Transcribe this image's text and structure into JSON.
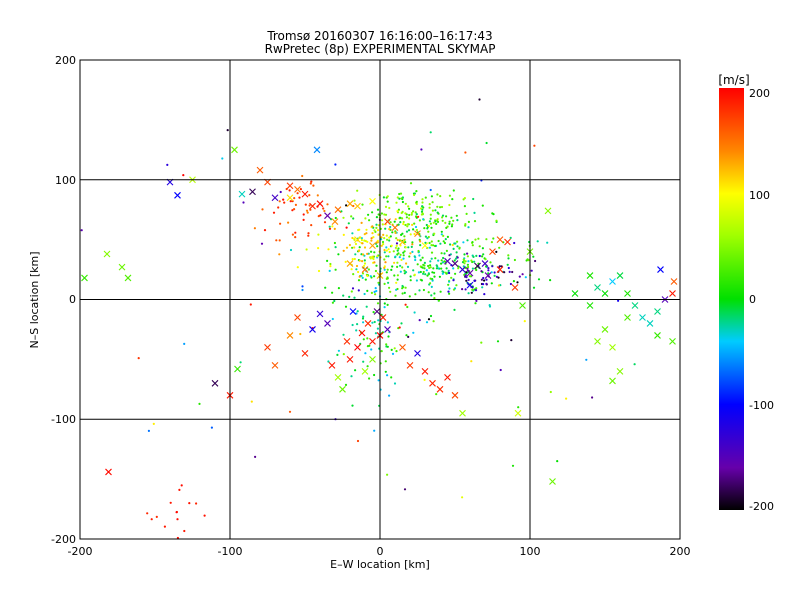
{
  "chart_data": {
    "type": "scatter",
    "title": "Tromsø 20160307 16:16:00–16:17:43",
    "subtitle": "RwPretec (8p) EXPERIMENTAL SKYMAP",
    "xlabel": "E–W location [km]",
    "ylabel": "N–S location [km]",
    "xlim": [
      -200,
      200
    ],
    "ylim": [
      -200,
      200
    ],
    "x_ticks": [
      "-200",
      "-100",
      "0",
      "100",
      "200"
    ],
    "y_ticks": [
      "-200",
      "-100",
      "0",
      "100",
      "200"
    ],
    "grid": true,
    "colorbar": {
      "label": "[m/s]",
      "range": [
        -200,
        200
      ],
      "ticks": [
        "200",
        "100",
        "0",
        "-100",
        "-200"
      ],
      "colormap": "rainbow (black-purple-blue-cyan-green-yellow-orange-red)"
    },
    "marker_types": [
      "x",
      "dot"
    ],
    "points": [
      {
        "x": -80,
        "y": 108,
        "v": 160,
        "m": "x"
      },
      {
        "x": -75,
        "y": 98,
        "v": 170,
        "m": "x"
      },
      {
        "x": -60,
        "y": 95,
        "v": 175,
        "m": "x"
      },
      {
        "x": -55,
        "y": 92,
        "v": 150,
        "m": "x"
      },
      {
        "x": -60,
        "y": 85,
        "v": 110,
        "m": "x"
      },
      {
        "x": -50,
        "y": 88,
        "v": 190,
        "m": "x"
      },
      {
        "x": -45,
        "y": 78,
        "v": 185,
        "m": "x"
      },
      {
        "x": -40,
        "y": 80,
        "v": 195,
        "m": "x"
      },
      {
        "x": -35,
        "y": 70,
        "v": -160,
        "m": "x"
      },
      {
        "x": -30,
        "y": 65,
        "v": 140,
        "m": "x"
      },
      {
        "x": -28,
        "y": 75,
        "v": 150,
        "m": "x"
      },
      {
        "x": -20,
        "y": 80,
        "v": 130,
        "m": "x"
      },
      {
        "x": -15,
        "y": 78,
        "v": 120,
        "m": "x"
      },
      {
        "x": -5,
        "y": 82,
        "v": 100,
        "m": "x"
      },
      {
        "x": -85,
        "y": 90,
        "v": -180,
        "m": "x"
      },
      {
        "x": -92,
        "y": 88,
        "v": -30,
        "m": "x"
      },
      {
        "x": -70,
        "y": 85,
        "v": -140,
        "m": "x"
      },
      {
        "x": -42,
        "y": 125,
        "v": -60,
        "m": "x"
      },
      {
        "x": -97,
        "y": 125,
        "v": 40,
        "m": "x"
      },
      {
        "x": -125,
        "y": 100,
        "v": 70,
        "m": "x"
      },
      {
        "x": -140,
        "y": 98,
        "v": -120,
        "m": "x"
      },
      {
        "x": -135,
        "y": 87,
        "v": -100,
        "m": "x"
      },
      {
        "x": -172,
        "y": 27,
        "v": 40,
        "m": "x"
      },
      {
        "x": -168,
        "y": 18,
        "v": 30,
        "m": "x"
      },
      {
        "x": -182,
        "y": 38,
        "v": 50,
        "m": "x"
      },
      {
        "x": -197,
        "y": 18,
        "v": 20,
        "m": "x"
      },
      {
        "x": -181,
        "y": -144,
        "v": 195,
        "m": "x"
      },
      {
        "x": -100,
        "y": -80,
        "v": 190,
        "m": "x"
      },
      {
        "x": -95,
        "y": -58,
        "v": 20,
        "m": "x"
      },
      {
        "x": -110,
        "y": -70,
        "v": -180,
        "m": "x"
      },
      {
        "x": -75,
        "y": -40,
        "v": 175,
        "m": "x"
      },
      {
        "x": -70,
        "y": -55,
        "v": 160,
        "m": "x"
      },
      {
        "x": -60,
        "y": -30,
        "v": 140,
        "m": "x"
      },
      {
        "x": -55,
        "y": -15,
        "v": 170,
        "m": "x"
      },
      {
        "x": -50,
        "y": -45,
        "v": 185,
        "m": "x"
      },
      {
        "x": -45,
        "y": -25,
        "v": -110,
        "m": "x"
      },
      {
        "x": -40,
        "y": -12,
        "v": -130,
        "m": "x"
      },
      {
        "x": -35,
        "y": -20,
        "v": -150,
        "m": "x"
      },
      {
        "x": -32,
        "y": -55,
        "v": 190,
        "m": "x"
      },
      {
        "x": -28,
        "y": -65,
        "v": 60,
        "m": "x"
      },
      {
        "x": -25,
        "y": -75,
        "v": 40,
        "m": "x"
      },
      {
        "x": -20,
        "y": -50,
        "v": 190,
        "m": "x"
      },
      {
        "x": -15,
        "y": -40,
        "v": 200,
        "m": "x"
      },
      {
        "x": -12,
        "y": -28,
        "v": 195,
        "m": "x"
      },
      {
        "x": -8,
        "y": -20,
        "v": 180,
        "m": "x"
      },
      {
        "x": -5,
        "y": -35,
        "v": 190,
        "m": "x"
      },
      {
        "x": 0,
        "y": -30,
        "v": 200,
        "m": "x"
      },
      {
        "x": 2,
        "y": -15,
        "v": 185,
        "m": "x"
      },
      {
        "x": 5,
        "y": -25,
        "v": -150,
        "m": "x"
      },
      {
        "x": -2,
        "y": -10,
        "v": -170,
        "m": "x"
      },
      {
        "x": -10,
        "y": -60,
        "v": 60,
        "m": "x"
      },
      {
        "x": -5,
        "y": -50,
        "v": 50,
        "m": "x"
      },
      {
        "x": -18,
        "y": -10,
        "v": -100,
        "m": "x"
      },
      {
        "x": -22,
        "y": -35,
        "v": 180,
        "m": "x"
      },
      {
        "x": 15,
        "y": -40,
        "v": 160,
        "m": "x"
      },
      {
        "x": 20,
        "y": -55,
        "v": 175,
        "m": "x"
      },
      {
        "x": 30,
        "y": -60,
        "v": 190,
        "m": "x"
      },
      {
        "x": 35,
        "y": -70,
        "v": 185,
        "m": "x"
      },
      {
        "x": 40,
        "y": -75,
        "v": 180,
        "m": "x"
      },
      {
        "x": 45,
        "y": -65,
        "v": 190,
        "m": "x"
      },
      {
        "x": 50,
        "y": -80,
        "v": 170,
        "m": "x"
      },
      {
        "x": 55,
        "y": -95,
        "v": 60,
        "m": "x"
      },
      {
        "x": 92,
        "y": -95,
        "v": 80,
        "m": "x"
      },
      {
        "x": 115,
        "y": -152,
        "v": 40,
        "m": "x"
      },
      {
        "x": 25,
        "y": -45,
        "v": -120,
        "m": "x"
      },
      {
        "x": 10,
        "y": 60,
        "v": 150,
        "m": "x"
      },
      {
        "x": 5,
        "y": 65,
        "v": 170,
        "m": "x"
      },
      {
        "x": 15,
        "y": 48,
        "v": 120,
        "m": "x"
      },
      {
        "x": 25,
        "y": 55,
        "v": 140,
        "m": "x"
      },
      {
        "x": 30,
        "y": 45,
        "v": 100,
        "m": "x"
      },
      {
        "x": -5,
        "y": 45,
        "v": 130,
        "m": "x"
      },
      {
        "x": -15,
        "y": 50,
        "v": 110,
        "m": "x"
      },
      {
        "x": -20,
        "y": 30,
        "v": 130,
        "m": "x"
      },
      {
        "x": -10,
        "y": 25,
        "v": 150,
        "m": "x"
      },
      {
        "x": 0,
        "y": 20,
        "v": 120,
        "m": "x"
      },
      {
        "x": 45,
        "y": 32,
        "v": -150,
        "m": "x"
      },
      {
        "x": 50,
        "y": 30,
        "v": -170,
        "m": "x"
      },
      {
        "x": 55,
        "y": 25,
        "v": -130,
        "m": "x"
      },
      {
        "x": 60,
        "y": 22,
        "v": -160,
        "m": "x"
      },
      {
        "x": 65,
        "y": 28,
        "v": -180,
        "m": "x"
      },
      {
        "x": 70,
        "y": 30,
        "v": -140,
        "m": "x"
      },
      {
        "x": 72,
        "y": 20,
        "v": -160,
        "m": "x"
      },
      {
        "x": 60,
        "y": 12,
        "v": -110,
        "m": "x"
      },
      {
        "x": 75,
        "y": 40,
        "v": 170,
        "m": "x"
      },
      {
        "x": 80,
        "y": 50,
        "v": 160,
        "m": "x"
      },
      {
        "x": 85,
        "y": 48,
        "v": 180,
        "m": "x"
      },
      {
        "x": 80,
        "y": 25,
        "v": 185,
        "m": "x"
      },
      {
        "x": 90,
        "y": 10,
        "v": 175,
        "m": "x"
      },
      {
        "x": 95,
        "y": -5,
        "v": 30,
        "m": "x"
      },
      {
        "x": 100,
        "y": 40,
        "v": 40,
        "m": "x"
      },
      {
        "x": 112,
        "y": 74,
        "v": 50,
        "m": "x"
      },
      {
        "x": 140,
        "y": 20,
        "v": 10,
        "m": "x"
      },
      {
        "x": 145,
        "y": 10,
        "v": -20,
        "m": "x"
      },
      {
        "x": 150,
        "y": 5,
        "v": 0,
        "m": "x"
      },
      {
        "x": 155,
        "y": 15,
        "v": -40,
        "m": "x"
      },
      {
        "x": 160,
        "y": 20,
        "v": -10,
        "m": "x"
      },
      {
        "x": 165,
        "y": 5,
        "v": 10,
        "m": "x"
      },
      {
        "x": 170,
        "y": -5,
        "v": -20,
        "m": "x"
      },
      {
        "x": 175,
        "y": -15,
        "v": -30,
        "m": "x"
      },
      {
        "x": 165,
        "y": -15,
        "v": 30,
        "m": "x"
      },
      {
        "x": 150,
        "y": -25,
        "v": 40,
        "m": "x"
      },
      {
        "x": 145,
        "y": -35,
        "v": 50,
        "m": "x"
      },
      {
        "x": 155,
        "y": -40,
        "v": 60,
        "m": "x"
      },
      {
        "x": 160,
        "y": -60,
        "v": 50,
        "m": "x"
      },
      {
        "x": 155,
        "y": -68,
        "v": 40,
        "m": "x"
      },
      {
        "x": 180,
        "y": -20,
        "v": -30,
        "m": "x"
      },
      {
        "x": 185,
        "y": -10,
        "v": -20,
        "m": "x"
      },
      {
        "x": 190,
        "y": 0,
        "v": -150,
        "m": "x"
      },
      {
        "x": 195,
        "y": 5,
        "v": 190,
        "m": "x"
      },
      {
        "x": 196,
        "y": 15,
        "v": 160,
        "m": "x"
      },
      {
        "x": 187,
        "y": 25,
        "v": -100,
        "m": "x"
      },
      {
        "x": 185,
        "y": -30,
        "v": 20,
        "m": "x"
      },
      {
        "x": 195,
        "y": -35,
        "v": 30,
        "m": "x"
      },
      {
        "x": 130,
        "y": 5,
        "v": 0,
        "m": "x"
      },
      {
        "x": 140,
        "y": -5,
        "v": 10,
        "m": "x"
      }
    ],
    "dot_clusters": [
      {
        "name": "central-green",
        "cx": 30,
        "cy": 30,
        "sx": 28,
        "sy": 18,
        "n": 380,
        "v": [
          -40,
          50
        ]
      },
      {
        "name": "north-green",
        "cx": 20,
        "cy": 70,
        "sx": 22,
        "sy": 10,
        "n": 170,
        "v": [
          -20,
          70
        ]
      },
      {
        "name": "north-yellow",
        "cx": -5,
        "cy": 45,
        "sx": 15,
        "sy": 12,
        "n": 110,
        "v": [
          80,
          140
        ]
      },
      {
        "name": "south-cyan",
        "cx": -5,
        "cy": -25,
        "sx": 15,
        "sy": 25,
        "n": 90,
        "v": [
          -50,
          30
        ]
      },
      {
        "name": "east-dark",
        "cx": 70,
        "cy": 22,
        "sx": 14,
        "sy": 10,
        "n": 60,
        "v": [
          -200,
          -120
        ]
      },
      {
        "name": "west-red",
        "cx": -55,
        "cy": 75,
        "sx": 15,
        "sy": 15,
        "n": 50,
        "v": [
          140,
          200
        ]
      },
      {
        "name": "south-red",
        "cx": -138,
        "cy": -180,
        "sx": 8,
        "sy": 14,
        "n": 18,
        "v": [
          180,
          200
        ]
      },
      {
        "name": "sparse",
        "cx": 0,
        "cy": 0,
        "sx": 110,
        "sy": 90,
        "n": 90,
        "v": [
          -200,
          200
        ]
      }
    ]
  }
}
